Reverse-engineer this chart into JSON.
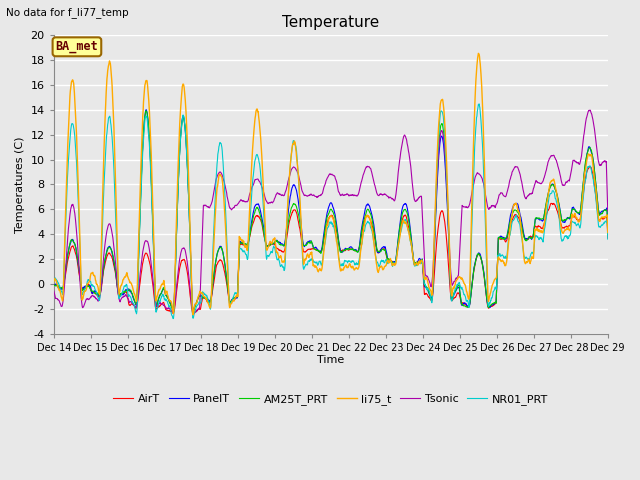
{
  "title": "Temperature",
  "ylabel": "Temperatures (C)",
  "xlabel": "Time",
  "note": "No data for f_li77_temp",
  "annotation": "BA_met",
  "ylim": [
    -4,
    20
  ],
  "fig_facecolor": "#e8e8e8",
  "plot_facecolor": "#e8e8e8",
  "series": {
    "AirT": {
      "color": "#ff0000",
      "lw": 0.8
    },
    "PanelT": {
      "color": "#0000ff",
      "lw": 0.8
    },
    "AM25T_PRT": {
      "color": "#00cc00",
      "lw": 0.8
    },
    "li75_t": {
      "color": "#ffaa00",
      "lw": 1.0
    },
    "Tsonic": {
      "color": "#aa00aa",
      "lw": 0.8
    },
    "NR01_PRT": {
      "color": "#00cccc",
      "lw": 0.8
    }
  },
  "xtick_labels": [
    "Dec 14",
    "Dec 15",
    "Dec 16",
    "Dec 17",
    "Dec 18",
    "Dec 19",
    "Dec 20",
    "Dec 21",
    "Dec 22",
    "Dec 23",
    "Dec 24",
    "Dec 25",
    "Dec 26",
    "Dec 27",
    "Dec 28",
    "Dec 29"
  ],
  "yticks": [
    -4,
    -2,
    0,
    2,
    4,
    6,
    8,
    10,
    12,
    14,
    16,
    18,
    20
  ],
  "grid_color": "white",
  "grid_lw": 1.0
}
